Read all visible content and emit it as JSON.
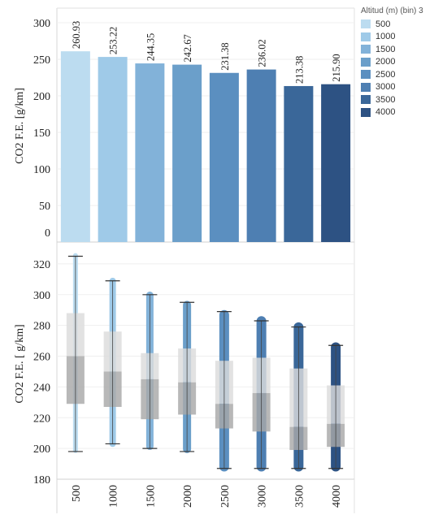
{
  "legend": {
    "title": "Altitud (m) (bin) 3",
    "items": [
      {
        "label": "500",
        "color": "#bcdcf0"
      },
      {
        "label": "1000",
        "color": "#9fcae8"
      },
      {
        "label": "1500",
        "color": "#82b2d9"
      },
      {
        "label": "2000",
        "color": "#6b9fca"
      },
      {
        "label": "2500",
        "color": "#5b8fc0"
      },
      {
        "label": "3000",
        "color": "#4e7fb2"
      },
      {
        "label": "3500",
        "color": "#3a6799"
      },
      {
        "label": "4000",
        "color": "#2d5283"
      }
    ]
  },
  "chart_data": [
    {
      "type": "bar",
      "ylabel": "CO2 F.E. [g/km]",
      "ylim": [
        0,
        300
      ],
      "yticks": [
        0,
        50,
        100,
        150,
        200,
        250,
        300
      ],
      "categories": [
        "500",
        "1000",
        "1500",
        "2000",
        "2500",
        "3000",
        "3500",
        "4000"
      ],
      "values": [
        260.93,
        253.22,
        244.35,
        242.67,
        231.38,
        236.02,
        213.38,
        215.9
      ],
      "data_labels": [
        "260.93",
        "253.22",
        "244.35",
        "242.67",
        "231.38",
        "236.02",
        "213.38",
        "215.90"
      ],
      "colors": [
        "#bcdcf0",
        "#9fcae8",
        "#82b2d9",
        "#6b9fca",
        "#5b8fc0",
        "#4e7fb2",
        "#3a6799",
        "#2d5283"
      ]
    },
    {
      "type": "box",
      "ylabel": "CO2 F.E. [ g/km]",
      "ylim": [
        180,
        330
      ],
      "yticks": [
        180,
        200,
        220,
        240,
        260,
        280,
        300,
        320
      ],
      "xlabel": "",
      "categories": [
        "500",
        "1000",
        "1500",
        "2000",
        "2500",
        "3000",
        "3500",
        "4000"
      ],
      "boxes": [
        {
          "min": 198,
          "q1": 229,
          "median": 260,
          "q3": 288,
          "max": 325,
          "pts_min": 197,
          "pts_max": 327
        },
        {
          "min": 203,
          "q1": 227,
          "median": 250,
          "q3": 276,
          "max": 309,
          "pts_min": 201,
          "pts_max": 311
        },
        {
          "min": 200,
          "q1": 219,
          "median": 245,
          "q3": 262,
          "max": 300,
          "pts_min": 199,
          "pts_max": 302
        },
        {
          "min": 198,
          "q1": 222,
          "median": 243,
          "q3": 265,
          "max": 295,
          "pts_min": 197,
          "pts_max": 296
        },
        {
          "min": 187,
          "q1": 213,
          "median": 229,
          "q3": 257,
          "max": 289,
          "pts_min": 185,
          "pts_max": 290
        },
        {
          "min": 187,
          "q1": 211,
          "median": 236,
          "q3": 259,
          "max": 283,
          "pts_min": 185,
          "pts_max": 286
        },
        {
          "min": 187,
          "q1": 199,
          "median": 214,
          "q3": 252,
          "max": 279,
          "pts_min": 185,
          "pts_max": 282
        },
        {
          "min": 187,
          "q1": 201,
          "median": 216,
          "q3": 241,
          "max": 267,
          "pts_min": 185,
          "pts_max": 269
        }
      ]
    }
  ]
}
